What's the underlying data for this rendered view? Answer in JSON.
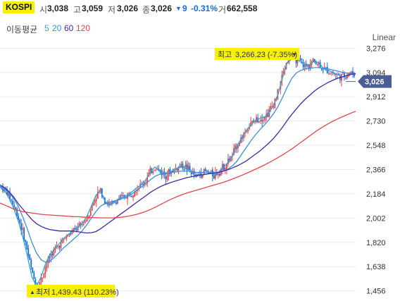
{
  "header": {
    "symbol": "KOSPI",
    "open_label": "시",
    "open": "3,038",
    "high_label": "고",
    "high": "3,059",
    "low_label": "저",
    "low": "3,026",
    "close_label": "종",
    "close": "3,026",
    "change_arrow": "▼",
    "change": "9",
    "change_pct": "-0.31%",
    "volume_label": "거",
    "volume": "662,558"
  },
  "moving_average": {
    "label": "이동평균",
    "periods": [
      {
        "value": "5",
        "color": "#27a9d6"
      },
      {
        "value": "20",
        "color": "#3b8ee0"
      },
      {
        "value": "60",
        "color": "#3d2aa3"
      },
      {
        "value": "120",
        "color": "#e0474c"
      }
    ]
  },
  "scale_label": "Linear",
  "annotations": {
    "high": {
      "label": "최고",
      "value": "3,266.23 (-7.35%)",
      "arrow": "▼"
    },
    "low": {
      "arrow": "▲",
      "label": "최저",
      "value": "1,439.43 (110.23%)"
    }
  },
  "current_price": "3,026",
  "colors": {
    "up": "#e0474c",
    "down": "#1e6ad6",
    "highlight": "#f7f000",
    "price_tag": "#4a5d94"
  },
  "chart_data": {
    "type": "line",
    "title": "",
    "xlabel": "",
    "ylabel": "",
    "ylim": [
      1380,
      3320
    ],
    "yticks": [
      3276,
      3094,
      2912,
      2730,
      2548,
      2366,
      2184,
      2002,
      1820,
      1638,
      1456
    ],
    "ytick_labels": [
      "3,276",
      "3,094",
      "2,912",
      "2,730",
      "2,548",
      "2,366",
      "2,184",
      "2,002",
      "1,820",
      "1,638",
      "1,456"
    ],
    "grid": true,
    "series": [
      {
        "name": "5",
        "color": "#27a9d6",
        "values": [
          2235,
          2205,
          2150,
          2075,
          1980,
          1860,
          1720,
          1560,
          1490,
          1560,
          1660,
          1730,
          1775,
          1810,
          1850,
          1880,
          1905,
          1930,
          1960,
          2010,
          2090,
          2170,
          2210,
          2130,
          2095,
          2120,
          2145,
          2160,
          2175,
          2200,
          2230,
          2250,
          2290,
          2350,
          2385,
          2355,
          2330,
          2340,
          2360,
          2380,
          2395,
          2380,
          2345,
          2310,
          2335,
          2355,
          2345,
          2325,
          2350,
          2385,
          2420,
          2470,
          2545,
          2600,
          2660,
          2700,
          2730,
          2750,
          2760,
          2790,
          2850,
          2930,
          3060,
          3170,
          3210,
          3200,
          3170,
          3140,
          3155,
          3180,
          3165,
          3120,
          3110,
          3095,
          3080,
          3060,
          3070,
          3090,
          3080
        ]
      },
      {
        "name": "20",
        "color": "#3b8ee0",
        "values": [
          2240,
          2220,
          2190,
          2150,
          2090,
          2010,
          1920,
          1820,
          1740,
          1690,
          1670,
          1680,
          1710,
          1745,
          1780,
          1810,
          1840,
          1870,
          1905,
          1950,
          2000,
          2050,
          2090,
          2110,
          2120,
          2130,
          2140,
          2150,
          2165,
          2185,
          2210,
          2235,
          2260,
          2290,
          2315,
          2330,
          2335,
          2340,
          2345,
          2350,
          2355,
          2355,
          2350,
          2345,
          2343,
          2343,
          2340,
          2338,
          2343,
          2355,
          2370,
          2395,
          2430,
          2480,
          2530,
          2580,
          2625,
          2665,
          2700,
          2740,
          2785,
          2840,
          2910,
          2985,
          3050,
          3090,
          3110,
          3120,
          3125,
          3130,
          3130,
          3125,
          3120,
          3112,
          3105,
          3095,
          3090,
          3087,
          3085
        ]
      },
      {
        "name": "60",
        "color": "#3d2aa3",
        "values": [
          2250,
          2230,
          2200,
          2160,
          2110,
          2070,
          2030,
          1990,
          1960,
          1940,
          1925,
          1915,
          1910,
          1905,
          1905,
          1905,
          1905,
          1900,
          1895,
          1890,
          1892,
          1900,
          1920,
          1945,
          1970,
          1995,
          2020,
          2045,
          2070,
          2095,
          2120,
          2145,
          2170,
          2195,
          2215,
          2235,
          2250,
          2263,
          2275,
          2285,
          2295,
          2305,
          2312,
          2320,
          2325,
          2330,
          2335,
          2340,
          2345,
          2355,
          2365,
          2378,
          2393,
          2410,
          2430,
          2455,
          2480,
          2505,
          2535,
          2565,
          2600,
          2640,
          2685,
          2735,
          2780,
          2820,
          2860,
          2895,
          2925,
          2955,
          2980,
          3000,
          3020,
          3035,
          3050,
          3060,
          3070,
          3080,
          3085
        ]
      },
      {
        "name": "120",
        "color": "#e0474c",
        "values": [
          2115,
          2100,
          2085,
          2070,
          2060,
          2050,
          2045,
          2040,
          2035,
          2030,
          2027,
          2025,
          2022,
          2020,
          2018,
          2015,
          2013,
          2012,
          2010,
          2008,
          2006,
          2005,
          2004,
          2003,
          2003,
          2004,
          2006,
          2010,
          2015,
          2022,
          2030,
          2040,
          2052,
          2066,
          2082,
          2100,
          2118,
          2135,
          2150,
          2165,
          2178,
          2190,
          2200,
          2210,
          2220,
          2230,
          2240,
          2250,
          2260,
          2270,
          2282,
          2295,
          2308,
          2322,
          2337,
          2352,
          2368,
          2384,
          2400,
          2418,
          2436,
          2456,
          2476,
          2498,
          2520,
          2545,
          2570,
          2595,
          2620,
          2645,
          2668,
          2690,
          2710,
          2728,
          2745,
          2760,
          2775,
          2790,
          2802
        ]
      }
    ]
  }
}
